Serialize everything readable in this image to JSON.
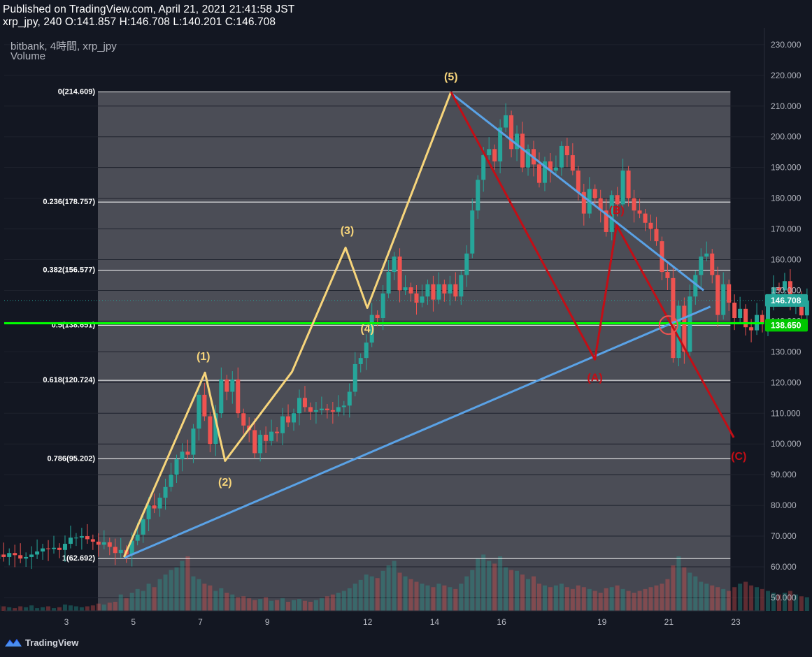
{
  "header": {
    "published": "Published on TradingView.com, April 21, 2021 21:41:58 JST",
    "ohlc": "xrp_jpy, 240 O:141.857 H:146.708 L:140.201 C:146.708"
  },
  "pane": {
    "symbol": "bitbank, 4時間, xrp_jpy",
    "volume_label": "Volume"
  },
  "branding": {
    "name": "TradingView",
    "icon": "tradingview-logo-icon"
  },
  "colors": {
    "background": "#131722",
    "fib_zone": "#4b4d56",
    "up": "#26a69a",
    "down": "#ef5350",
    "impulse_wave": "#f7d57b",
    "correction_wave": "#c30e16",
    "trendline": "#5aa2e6",
    "support_line": "#00ff00"
  },
  "chart_data": {
    "type": "candlestick",
    "title": "bitbank, 4時間, xrp_jpy",
    "y_axis": {
      "range": [
        45,
        233
      ],
      "ticks": [
        "230.000",
        "220.000",
        "210.000",
        "200.000",
        "190.000",
        "180.000",
        "170.000",
        "160.000",
        "150.000",
        "140.000",
        "130.000",
        "120.000",
        "110.000",
        "100.000",
        "90.000",
        "80.000",
        "70.000",
        "60.000",
        "50.000"
      ],
      "tick_values": [
        230,
        220,
        210,
        200,
        190,
        180,
        170,
        160,
        150,
        140,
        130,
        120,
        110,
        100,
        90,
        80,
        70,
        60,
        50
      ],
      "markers": [
        {
          "label": "146.708",
          "value": 146.708,
          "color": "#26a69a"
        },
        {
          "label": "138.650",
          "value": 138.65,
          "color": "#00c800"
        }
      ]
    },
    "x_axis": {
      "ticks": [
        {
          "label": "3",
          "t": -0.94
        },
        {
          "label": "5",
          "t": 1.06
        },
        {
          "label": "7",
          "t": 3.06
        },
        {
          "label": "9",
          "t": 5.06
        },
        {
          "label": "12",
          "t": 8.06
        },
        {
          "label": "14",
          "t": 10.06
        },
        {
          "label": "16",
          "t": 12.06
        },
        {
          "label": "19",
          "t": 15.06
        },
        {
          "label": "21",
          "t": 17.06
        },
        {
          "label": "23",
          "t": 19.06
        }
      ],
      "unit": "days since Apr 4"
    },
    "fibonacci": {
      "t_start": 0,
      "t_end": 18.9,
      "levels": [
        {
          "label": "0(214.609)",
          "value": 214.609
        },
        {
          "label": "0.236(178.757)",
          "value": 178.757
        },
        {
          "label": "0.382(156.577)",
          "value": 156.577
        },
        {
          "label": "0.5(138.651)",
          "value": 138.651
        },
        {
          "label": "0.618(120.724)",
          "value": 120.724
        },
        {
          "label": "0.786(95.202)",
          "value": 95.202
        },
        {
          "label": "1(62.692)",
          "value": 62.692
        }
      ]
    },
    "support_line": {
      "value": 139.3
    },
    "current_price_line": {
      "value": 146.708
    },
    "impulse_wave": {
      "points": [
        [
          0.78,
          63.2
        ],
        [
          3.2,
          123.2
        ],
        [
          3.8,
          94.5
        ],
        [
          5.8,
          123.5
        ],
        [
          7.4,
          163.9
        ],
        [
          8.05,
          144.3
        ],
        [
          10.55,
          214.6
        ]
      ],
      "labels": [
        {
          "text": "(1)",
          "t": 3.15,
          "v": 128.5,
          "pos": "above"
        },
        {
          "text": "(2)",
          "t": 3.8,
          "v": 87.5,
          "pos": "below"
        },
        {
          "text": "(3)",
          "t": 7.45,
          "v": 169.5,
          "pos": "above"
        },
        {
          "text": "(4)",
          "t": 8.05,
          "v": 137.5,
          "pos": "below"
        },
        {
          "text": "(5)",
          "t": 10.55,
          "v": 219.5,
          "pos": "above"
        }
      ]
    },
    "correction_wave": {
      "points": [
        [
          10.55,
          214.6
        ],
        [
          14.85,
          127.5
        ],
        [
          15.5,
          171.2
        ],
        [
          19.0,
          102.1
        ]
      ],
      "labels": [
        {
          "text": "(A)",
          "t": 14.85,
          "v": 121.5,
          "pos": "below"
        },
        {
          "text": "(B)",
          "t": 15.5,
          "v": 176.0,
          "pos": "above"
        },
        {
          "text": "(C)",
          "t": 19.15,
          "v": 96.0,
          "pos": "below"
        }
      ]
    },
    "trendlines": [
      {
        "points": [
          [
            0.78,
            62.9
          ],
          [
            18.3,
            144.7
          ]
        ]
      },
      {
        "points": [
          [
            10.6,
            213.8
          ],
          [
            18.1,
            150.0
          ]
        ]
      }
    ],
    "highlight_circle": {
      "t": 17.05,
      "v": 138.7
    },
    "candles": {
      "t0": -3.15,
      "step": 0.1667,
      "closes": [
        62.5,
        64.0,
        63.2,
        64.5,
        63.8,
        62.7,
        63.2,
        64.0,
        65.0,
        66.0,
        65.8,
        66.2,
        65.5,
        67.5,
        69.5,
        69.5,
        70.0,
        69.0,
        68.2,
        67.2,
        68.0,
        66.5,
        64.5,
        65.5,
        64.0,
        68.5,
        70.5,
        75.5,
        80.0,
        79.0,
        82.5,
        86.0,
        90.0,
        95.0,
        97.5,
        96.5,
        105.0,
        116.0,
        109.0,
        100.0,
        110.0,
        121.0,
        117.0,
        121.0,
        110.0,
        106.0,
        104.5,
        97.0,
        103.0,
        101.0,
        104.0,
        103.5,
        109.0,
        107.0,
        110.0,
        115.0,
        112.0,
        110.5,
        111.0,
        111.5,
        111.0,
        110.5,
        112.0,
        112.5,
        117.0,
        126.0,
        128.0,
        133.0,
        142.0,
        141.0,
        149.0,
        156.0,
        161.0,
        150.0,
        151.0,
        149.0,
        146.0,
        148.0,
        152.0,
        147.0,
        152.0,
        149.0,
        152.0,
        148.0,
        155.0,
        162.0,
        176.0,
        186.0,
        194.0,
        196.0,
        192.0,
        203.0,
        207.0,
        196.0,
        201.0,
        190.0,
        196.0,
        191.0,
        185.0,
        192.0,
        189.0,
        190.0,
        197.0,
        194.0,
        189.0,
        182.0,
        175.0,
        183.0,
        180.0,
        176.0,
        169.0,
        181.0,
        178.0,
        189.0,
        180.0,
        176.0,
        175.0,
        172.0,
        170.0,
        166.0,
        156.0,
        154.0,
        128.0,
        145.0,
        130.0,
        148.0,
        155.0,
        161.0,
        162.0,
        155.0,
        142.0,
        152.0,
        146.0,
        141.0,
        144.0,
        138.0,
        137.0,
        142.0,
        139.0,
        145.0,
        151.0,
        150.0,
        153.0,
        145.0,
        147.0,
        141.857,
        146.708
      ]
    },
    "volume": {
      "max_value": 100,
      "values": [
        8,
        6,
        5,
        4,
        3,
        5,
        4,
        6,
        3,
        4,
        5,
        3,
        4,
        7,
        6,
        5,
        4,
        5,
        6,
        8,
        7,
        9,
        10,
        18,
        14,
        20,
        24,
        22,
        30,
        26,
        35,
        40,
        45,
        48,
        55,
        60,
        38,
        35,
        30,
        28,
        22,
        25,
        20,
        18,
        15,
        16,
        14,
        12,
        13,
        15,
        11,
        12,
        14,
        10,
        12,
        13,
        11,
        10,
        12,
        14,
        16,
        18,
        20,
        22,
        25,
        30,
        34,
        40,
        38,
        36,
        44,
        50,
        55,
        42,
        38,
        35,
        32,
        30,
        28,
        26,
        30,
        28,
        26,
        24,
        30,
        38,
        45,
        58,
        62,
        55,
        52,
        60,
        48,
        45,
        44,
        40,
        35,
        38,
        30,
        28,
        26,
        28,
        30,
        26,
        24,
        28,
        26,
        24,
        22,
        20,
        25,
        26,
        28,
        24,
        22,
        20,
        22,
        24,
        26,
        28,
        30,
        35,
        50,
        60,
        48,
        42,
        38,
        32,
        30,
        28,
        26,
        24,
        22,
        26,
        30,
        32,
        28,
        26,
        24,
        22,
        20,
        18,
        20,
        22,
        18,
        16,
        15
      ]
    }
  }
}
